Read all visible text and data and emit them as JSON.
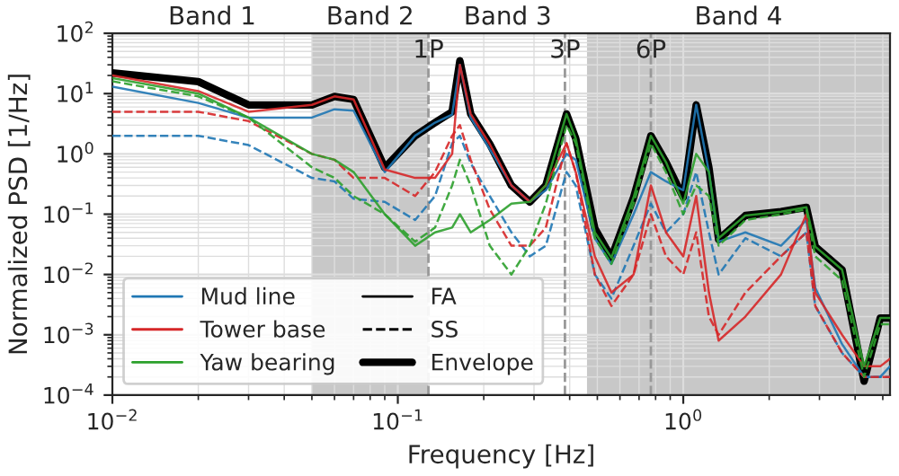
{
  "chart_data": {
    "type": "line",
    "xlabel": "Frequency [Hz]",
    "ylabel": "Normalized PSD [1/Hz]",
    "log": "xy",
    "grid": true,
    "legend": "bottom left",
    "x": [
      0.01,
      0.02,
      0.03,
      0.05,
      0.06,
      0.07,
      0.09,
      0.115,
      0.135,
      0.155,
      0.165,
      0.18,
      0.21,
      0.25,
      0.29,
      0.33,
      0.39,
      0.42,
      0.49,
      0.56,
      0.67,
      0.77,
      0.87,
      1.0,
      1.11,
      1.23,
      1.33,
      1.65,
      2.2,
      2.7,
      2.9,
      3.6,
      4.3,
      4.9,
      5.3
    ],
    "xlim": [
      0.01,
      5.3
    ],
    "ylim": [
      0.0001,
      100
    ],
    "xticks": [
      {
        "value": 0.01,
        "label": "10$^{−2}$"
      },
      {
        "value": 0.1,
        "label": "10$^{−1}$"
      },
      {
        "value": 1,
        "label": "10$^{0}$"
      }
    ],
    "yticks": [
      {
        "value": 0.0001,
        "label": "10$^{−4}$"
      },
      {
        "value": 0.001,
        "label": "10$^{−3}$"
      },
      {
        "value": 0.01,
        "label": "10$^{−2}$"
      },
      {
        "value": 0.1,
        "label": "10$^{−1}$"
      },
      {
        "value": 1,
        "label": "10$^{0}$"
      },
      {
        "value": 10,
        "label": "10$^{1}$"
      },
      {
        "value": 100,
        "label": "10$^{2}$"
      }
    ],
    "bands": [
      {
        "axis": "x",
        "from": 0.05,
        "to": 0.128,
        "label": "Band 2",
        "color": "#c8c8c8"
      },
      {
        "axis": "x",
        "from": 0.128,
        "to": 0.46,
        "label": "Band 3",
        "color": "#ffffff"
      },
      {
        "axis": "x",
        "from": 0.46,
        "to": 5.3,
        "label": "Band 4",
        "color": "#c8c8c8"
      }
    ],
    "ref_lines": [
      {
        "axis": "x",
        "value": 0.128,
        "label": "1P",
        "color": "#999999",
        "line_style": "dashed"
      },
      {
        "axis": "x",
        "value": 0.385,
        "label": "3P",
        "color": "#999999",
        "line_style": "dashed"
      },
      {
        "axis": "x",
        "value": 0.77,
        "label": "6P",
        "color": "#999999",
        "line_style": "dashed"
      }
    ],
    "annotations": [
      "Band 1",
      "FA",
      "SS"
    ],
    "series": [
      {
        "name": "Mud line",
        "color": "#1f77b4",
        "line_style": "solid",
        "values": [
          13,
          7,
          4,
          4,
          5.5,
          5.2,
          0.5,
          2.0,
          3.3,
          4.5,
          30,
          4,
          1.2,
          0.3,
          0.16,
          0.25,
          1.0,
          0.8,
          0.04,
          0.015,
          0.1,
          0.5,
          0.35,
          0.25,
          6.5,
          0.5,
          0.035,
          0.05,
          0.03,
          0.08,
          0.006,
          0.0007,
          0.0002,
          0.0002,
          0.0003
        ]
      },
      {
        "color": "#1f77b4",
        "line_style": "dashed",
        "values": [
          2,
          2,
          1.4,
          0.4,
          0.35,
          0.18,
          0.16,
          0.08,
          0.2,
          1.5,
          2,
          0.7,
          0.2,
          0.05,
          0.02,
          0.03,
          0.5,
          0.3,
          0.01,
          0.004,
          0.03,
          0.15,
          0.05,
          0.1,
          0.5,
          0.05,
          0.01,
          0.04,
          0.02,
          0.05,
          0.003,
          0.0005,
          0.0002,
          0.0002,
          0.0002
        ]
      },
      {
        "name": "Tower base",
        "color": "#d62728",
        "line_style": "solid",
        "values": [
          20,
          11,
          5,
          6.5,
          9,
          8,
          0.55,
          0.4,
          0.4,
          1,
          30,
          4.6,
          1.45,
          0.3,
          0.16,
          0.3,
          1.5,
          0.5,
          0.02,
          0.005,
          0.01,
          0.3,
          0.05,
          0.02,
          0.2,
          0.005,
          0.0008,
          0.002,
          0.01,
          0.1,
          0.005,
          0.001,
          0.0003,
          0.0003,
          0.0004
        ]
      },
      {
        "color": "#d62728",
        "line_style": "dashed",
        "values": [
          5,
          5,
          3.5,
          1,
          0.8,
          0.4,
          0.4,
          0.2,
          0.5,
          2,
          3,
          0.8,
          0.12,
          0.03,
          0.03,
          0.06,
          1.5,
          0.5,
          0.01,
          0.003,
          0.01,
          0.1,
          0.02,
          0.01,
          0.05,
          0.002,
          0.001,
          0.005,
          0.02,
          0.05,
          0.003,
          0.0005,
          0.0002,
          0.0002,
          0.0002
        ]
      },
      {
        "name": "Yaw bearing",
        "color": "#2ca02c",
        "line_style": "solid",
        "values": [
          18,
          10,
          4,
          1,
          0.8,
          0.5,
          0.1,
          0.03,
          0.05,
          0.06,
          0.1,
          0.05,
          0.08,
          0.15,
          0.16,
          0.3,
          4.6,
          1.8,
          0.05,
          0.019,
          0.19,
          2.0,
          0.73,
          0.15,
          1.0,
          0.5,
          0.04,
          0.095,
          0.11,
          0.13,
          0.029,
          0.012,
          0.0003,
          0.0019,
          0.0019
        ]
      },
      {
        "color": "#2ca02c",
        "line_style": "dashed",
        "values": [
          16,
          9,
          4,
          0.6,
          0.4,
          0.2,
          0.1,
          0.035,
          0.06,
          0.3,
          0.8,
          0.3,
          0.03,
          0.01,
          0.03,
          0.15,
          3,
          1.5,
          0.04,
          0.015,
          0.15,
          1.5,
          0.5,
          0.1,
          0.3,
          0.2,
          0.03,
          0.08,
          0.1,
          0.12,
          0.02,
          0.008,
          0.0002,
          0.0015,
          0.0015
        ]
      },
      {
        "name": "Envelope",
        "color": "#000000",
        "line_style": "solid",
        "values": [
          22,
          15.8,
          6.5,
          6.5,
          9,
          8,
          0.59,
          2.0,
          3.3,
          5,
          35,
          4.6,
          1.45,
          0.3,
          0.16,
          0.3,
          4.6,
          1.8,
          0.058,
          0.019,
          0.19,
          2.0,
          0.73,
          0.19,
          6.5,
          0.59,
          0.038,
          0.095,
          0.11,
          0.13,
          0.029,
          0.012,
          0.00017,
          0.0019,
          0.0019
        ]
      }
    ]
  }
}
